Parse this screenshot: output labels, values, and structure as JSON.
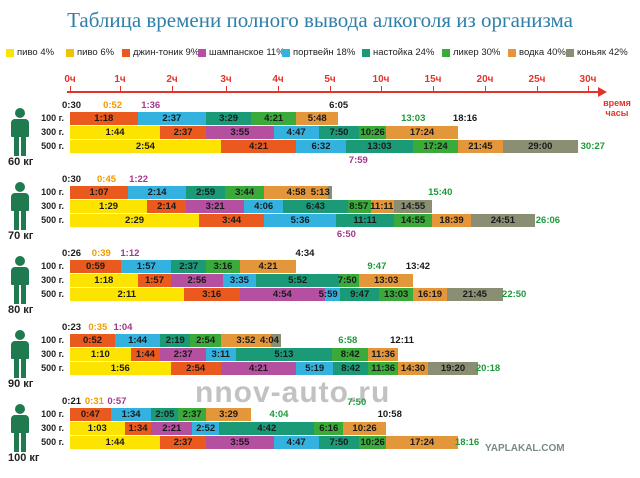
{
  "title": "Таблица времени полного вывода алкоголя из организма",
  "legend": [
    {
      "label": "пиво 4%",
      "color": "#fde400"
    },
    {
      "label": "пиво 6%",
      "color": "#f2c200"
    },
    {
      "label": "джин-тоник 9%",
      "color": "#ea5a1f"
    },
    {
      "label": "шампанское 11%",
      "color": "#b54fa0"
    },
    {
      "label": "портвейн 18%",
      "color": "#34b2df"
    },
    {
      "label": "настойка 24%",
      "color": "#1b9a78"
    },
    {
      "label": "ликер 30%",
      "color": "#3aab3a"
    },
    {
      "label": "водка 40%",
      "color": "#e4963b"
    },
    {
      "label": "коньяк 42%",
      "color": "#8a8f73"
    }
  ],
  "axis": {
    "ticks": [
      "0ч",
      "1ч",
      "2ч",
      "3ч",
      "4ч",
      "5ч",
      "10ч",
      "15ч",
      "20ч",
      "25ч",
      "30ч"
    ],
    "unit_line1": "время",
    "unit_line2": "часы"
  },
  "groups": [
    {
      "weight": "60 кг",
      "summary": [
        {
          "t": "0:30",
          "d": 0
        },
        {
          "t": "0:52",
          "d": 1
        },
        {
          "t": "1:36",
          "d": 3
        }
      ],
      "rows": [
        {
          "label": "100 г.",
          "values": [
            "",
            "",
            "1:18",
            "",
            "2:37",
            "3:29",
            "4:21",
            "5:48",
            ""
          ],
          "above": "6:05",
          "end": "13:03",
          "end2": "18:16"
        },
        {
          "label": "300 г.",
          "values": [
            "1:44",
            "",
            "2:37",
            "3:55",
            "4:47",
            "7:50",
            "10:26",
            "17:24",
            ""
          ],
          "end": ""
        },
        {
          "label": "500 г.",
          "values": [
            "2:54",
            "",
            "4:21",
            "",
            "6:32",
            "13:03",
            "17:24",
            "21:45",
            "29:00"
          ],
          "end": "30:27",
          "below": "7:59"
        }
      ]
    },
    {
      "weight": "70 кг",
      "summary": [
        {
          "t": "0:30",
          "d": 0
        },
        {
          "t": "0:45",
          "d": 1
        },
        {
          "t": "1:22",
          "d": 3
        }
      ],
      "rows": [
        {
          "label": "100 г.",
          "values": [
            "",
            "",
            "1:07",
            "",
            "2:14",
            "2:59",
            "3:44",
            "4:58",
            "5:13"
          ],
          "end": "15:40"
        },
        {
          "label": "300 г.",
          "values": [
            "1:29",
            "",
            "2:14",
            "3:21",
            "4:06",
            "6:43",
            "8:57",
            "11:11",
            "14:55"
          ],
          "end": ""
        },
        {
          "label": "500 г.",
          "values": [
            "2:29",
            "",
            "3:44",
            "",
            "5:36",
            "11:11",
            "14:55",
            "18:39",
            "24:51"
          ],
          "end": "26:06",
          "below": "6:50"
        }
      ]
    },
    {
      "weight": "80 кг",
      "summary": [
        {
          "t": "0:26",
          "d": 0
        },
        {
          "t": "0:39",
          "d": 1
        },
        {
          "t": "1:12",
          "d": 3
        }
      ],
      "rows": [
        {
          "label": "100 г.",
          "values": [
            "",
            "",
            "0:59",
            "",
            "1:57",
            "2:37",
            "3:16",
            "4:21",
            ""
          ],
          "above": "4:34",
          "end": "9:47",
          "end2": "13:42"
        },
        {
          "label": "300 г.",
          "values": [
            "1:18",
            "",
            "1:57",
            "2:56",
            "3:35",
            "5:52",
            "7:50",
            "13:03",
            ""
          ],
          "end": ""
        },
        {
          "label": "500 г.",
          "values": [
            "2:11",
            "",
            "3:16",
            "4:54",
            "5:59",
            "9:47",
            "13:03",
            "16:19",
            "21:45"
          ],
          "end": "22:50"
        }
      ]
    },
    {
      "weight": "90 кг",
      "summary": [
        {
          "t": "0:23",
          "d": 0
        },
        {
          "t": "0:35",
          "d": 1
        },
        {
          "t": "1:04",
          "d": 3
        }
      ],
      "rows": [
        {
          "label": "100 г.",
          "values": [
            "",
            "",
            "0:52",
            "",
            "1:44",
            "2:19",
            "2:54",
            "3:52",
            "4:04"
          ],
          "end": "6:58",
          "end2": "12:11"
        },
        {
          "label": "300 г.",
          "values": [
            "1:10",
            "",
            "1:44",
            "2:37",
            "3:11",
            "5:13",
            "8:42",
            "11:36",
            ""
          ],
          "end": ""
        },
        {
          "label": "500 г.",
          "values": [
            "1:56",
            "",
            "2:54",
            "4:21",
            "5:19",
            "8:42",
            "11:36",
            "14:30",
            "19:20"
          ],
          "end": "20:18"
        }
      ]
    },
    {
      "weight": "100 кг",
      "summary": [
        {
          "t": "0:21",
          "d": 0
        },
        {
          "t": "0:31",
          "d": 1
        },
        {
          "t": "0:57",
          "d": 3
        }
      ],
      "rows": [
        {
          "label": "100 г.",
          "values": [
            "",
            "",
            "0:47",
            "",
            "1:34",
            "2:05",
            "2:37",
            "3:29",
            ""
          ],
          "end": "4:04",
          "above2": "7:50",
          "end2": "10:58"
        },
        {
          "label": "300 г.",
          "values": [
            "1:03",
            "",
            "1:34",
            "2:21",
            "2:52",
            "4:42",
            "6:16",
            "10:26",
            ""
          ],
          "end": ""
        },
        {
          "label": "500 г.",
          "values": [
            "1:44",
            "",
            "2:37",
            "3:55",
            "4:47",
            "7:50",
            "10:26",
            "17:24",
            ""
          ],
          "end": "18:16"
        }
      ]
    }
  ],
  "watermark": "nnov-auto.ru",
  "watermark2": "YAPLAKAL.COM"
}
